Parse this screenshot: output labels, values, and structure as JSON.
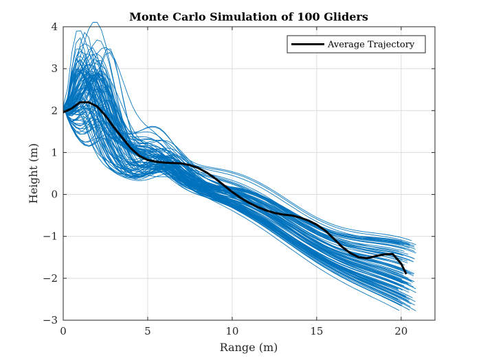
{
  "chart_data": {
    "type": "line",
    "title": "Monte Carlo Simulation of 100 Gliders",
    "xlabel": "Range (m)",
    "ylabel": "Height (m)",
    "xlim": [
      0,
      22
    ],
    "ylim": [
      -3,
      4
    ],
    "x_ticks": [
      0,
      5,
      10,
      15,
      20
    ],
    "y_ticks": [
      -3,
      -2,
      -1,
      0,
      1,
      2,
      3,
      4
    ],
    "x_tick_labels": [
      "0",
      "5",
      "10",
      "15",
      "20"
    ],
    "y_tick_labels": [
      "−3",
      "−2",
      "−1",
      "0",
      "1",
      "2",
      "3",
      "4"
    ],
    "grid": true,
    "legend_position": "top-right",
    "colors": {
      "gliders": "#0072BD",
      "average": "#000000",
      "grid": "#dcdcdc",
      "axis": "#262626"
    },
    "series": [
      {
        "name": "Average Trajectory",
        "x": [
          0,
          0.5,
          1,
          1.5,
          2,
          2.5,
          3,
          3.5,
          4,
          4.5,
          5,
          5.5,
          6,
          6.5,
          7,
          7.5,
          8,
          8.5,
          9,
          9.5,
          10,
          10.5,
          11,
          11.5,
          12,
          12.5,
          13,
          13.5,
          14,
          14.5,
          15,
          15.5,
          16,
          16.5,
          17,
          17.5,
          18,
          18.5,
          19,
          19.5,
          20,
          20.3
        ],
        "y": [
          1.96,
          2.05,
          2.2,
          2.2,
          2.1,
          1.88,
          1.6,
          1.35,
          1.1,
          0.92,
          0.82,
          0.78,
          0.76,
          0.75,
          0.74,
          0.7,
          0.63,
          0.52,
          0.38,
          0.22,
          0.06,
          -0.08,
          -0.2,
          -0.3,
          -0.38,
          -0.44,
          -0.48,
          -0.5,
          -0.55,
          -0.62,
          -0.72,
          -0.86,
          -1.05,
          -1.25,
          -1.4,
          -1.5,
          -1.52,
          -1.47,
          -1.43,
          -1.42,
          -1.65,
          -1.9
        ]
      }
    ],
    "ensemble": {
      "count": 100,
      "series_name": "Glider trajectories",
      "start_point": [
        0,
        1.95
      ],
      "end_x_range": [
        19.8,
        20.9
      ],
      "end_y_range": [
        -2.85,
        -1.2
      ],
      "peak_height_range": [
        1.95,
        3.8
      ],
      "peak_x_range": [
        0.6,
        2.8
      ]
    }
  },
  "legend": {
    "label": "Average Trajectory"
  }
}
